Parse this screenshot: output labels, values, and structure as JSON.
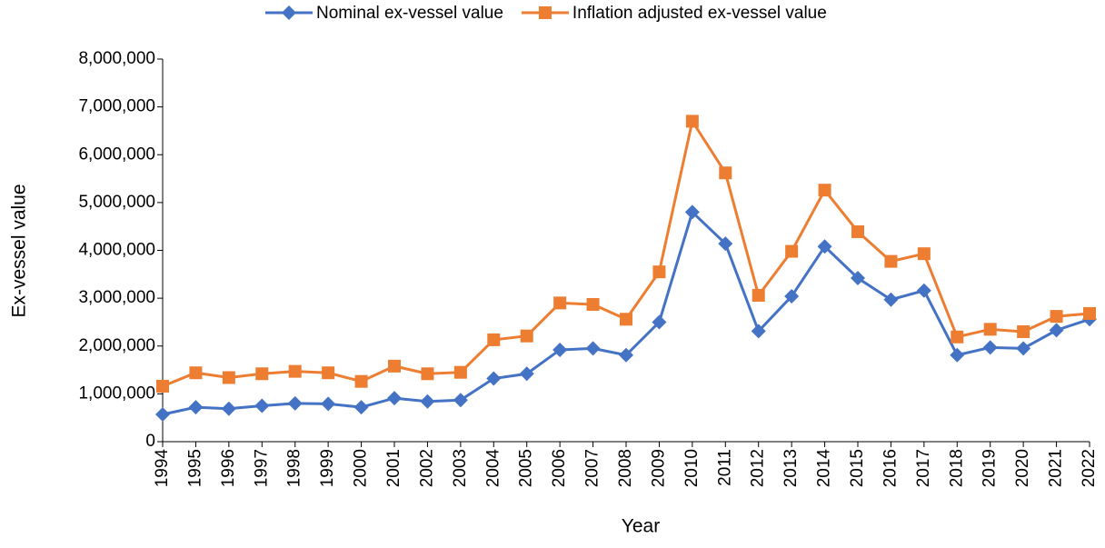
{
  "chart_data": {
    "type": "line",
    "categories": [
      "1994",
      "1995",
      "1996",
      "1997",
      "1998",
      "1999",
      "2000",
      "2001",
      "2002",
      "2003",
      "2004",
      "2005",
      "2006",
      "2007",
      "2008",
      "2009",
      "2010",
      "2011",
      "2012",
      "2013",
      "2014",
      "2015",
      "2016",
      "2017",
      "2018",
      "2019",
      "2020",
      "2021",
      "2022"
    ],
    "series": [
      {
        "name": "Nominal ex-vessel value",
        "color": "#4472c4",
        "marker": "diamond",
        "values": [
          570000,
          720000,
          690000,
          750000,
          800000,
          790000,
          720000,
          910000,
          840000,
          870000,
          1320000,
          1420000,
          1920000,
          1950000,
          1810000,
          2500000,
          4800000,
          4140000,
          2310000,
          3040000,
          4080000,
          3420000,
          2970000,
          3160000,
          1810000,
          1970000,
          1950000,
          2330000,
          2560000
        ]
      },
      {
        "name": "Inflation adjusted ex-vessel value",
        "color": "#ed7d31",
        "marker": "square",
        "values": [
          1160000,
          1440000,
          1340000,
          1420000,
          1470000,
          1440000,
          1260000,
          1580000,
          1420000,
          1450000,
          2130000,
          2210000,
          2900000,
          2870000,
          2560000,
          3550000,
          6700000,
          5620000,
          3060000,
          3980000,
          5260000,
          4390000,
          3770000,
          3930000,
          2190000,
          2350000,
          2300000,
          2620000,
          2680000
        ]
      }
    ],
    "xlabel": "Year",
    "ylabel": "Ex-vessel value",
    "ylim": [
      0,
      8000000
    ],
    "yticks": [
      0,
      {
        "value": 1000000,
        "label": "1,000,000"
      },
      {
        "value": 2000000,
        "label": "2,000,000"
      },
      {
        "value": 3000000,
        "label": "3,000,000"
      },
      {
        "value": 4000000,
        "label": "4,000,000"
      },
      {
        "value": 5000000,
        "label": "5,000,000"
      },
      {
        "value": 6000000,
        "label": "6,000,000"
      },
      {
        "value": 7000000,
        "label": "7,000,000"
      },
      {
        "value": 8000000,
        "label": "8,000,000"
      }
    ],
    "grid": false,
    "legend": "top"
  }
}
